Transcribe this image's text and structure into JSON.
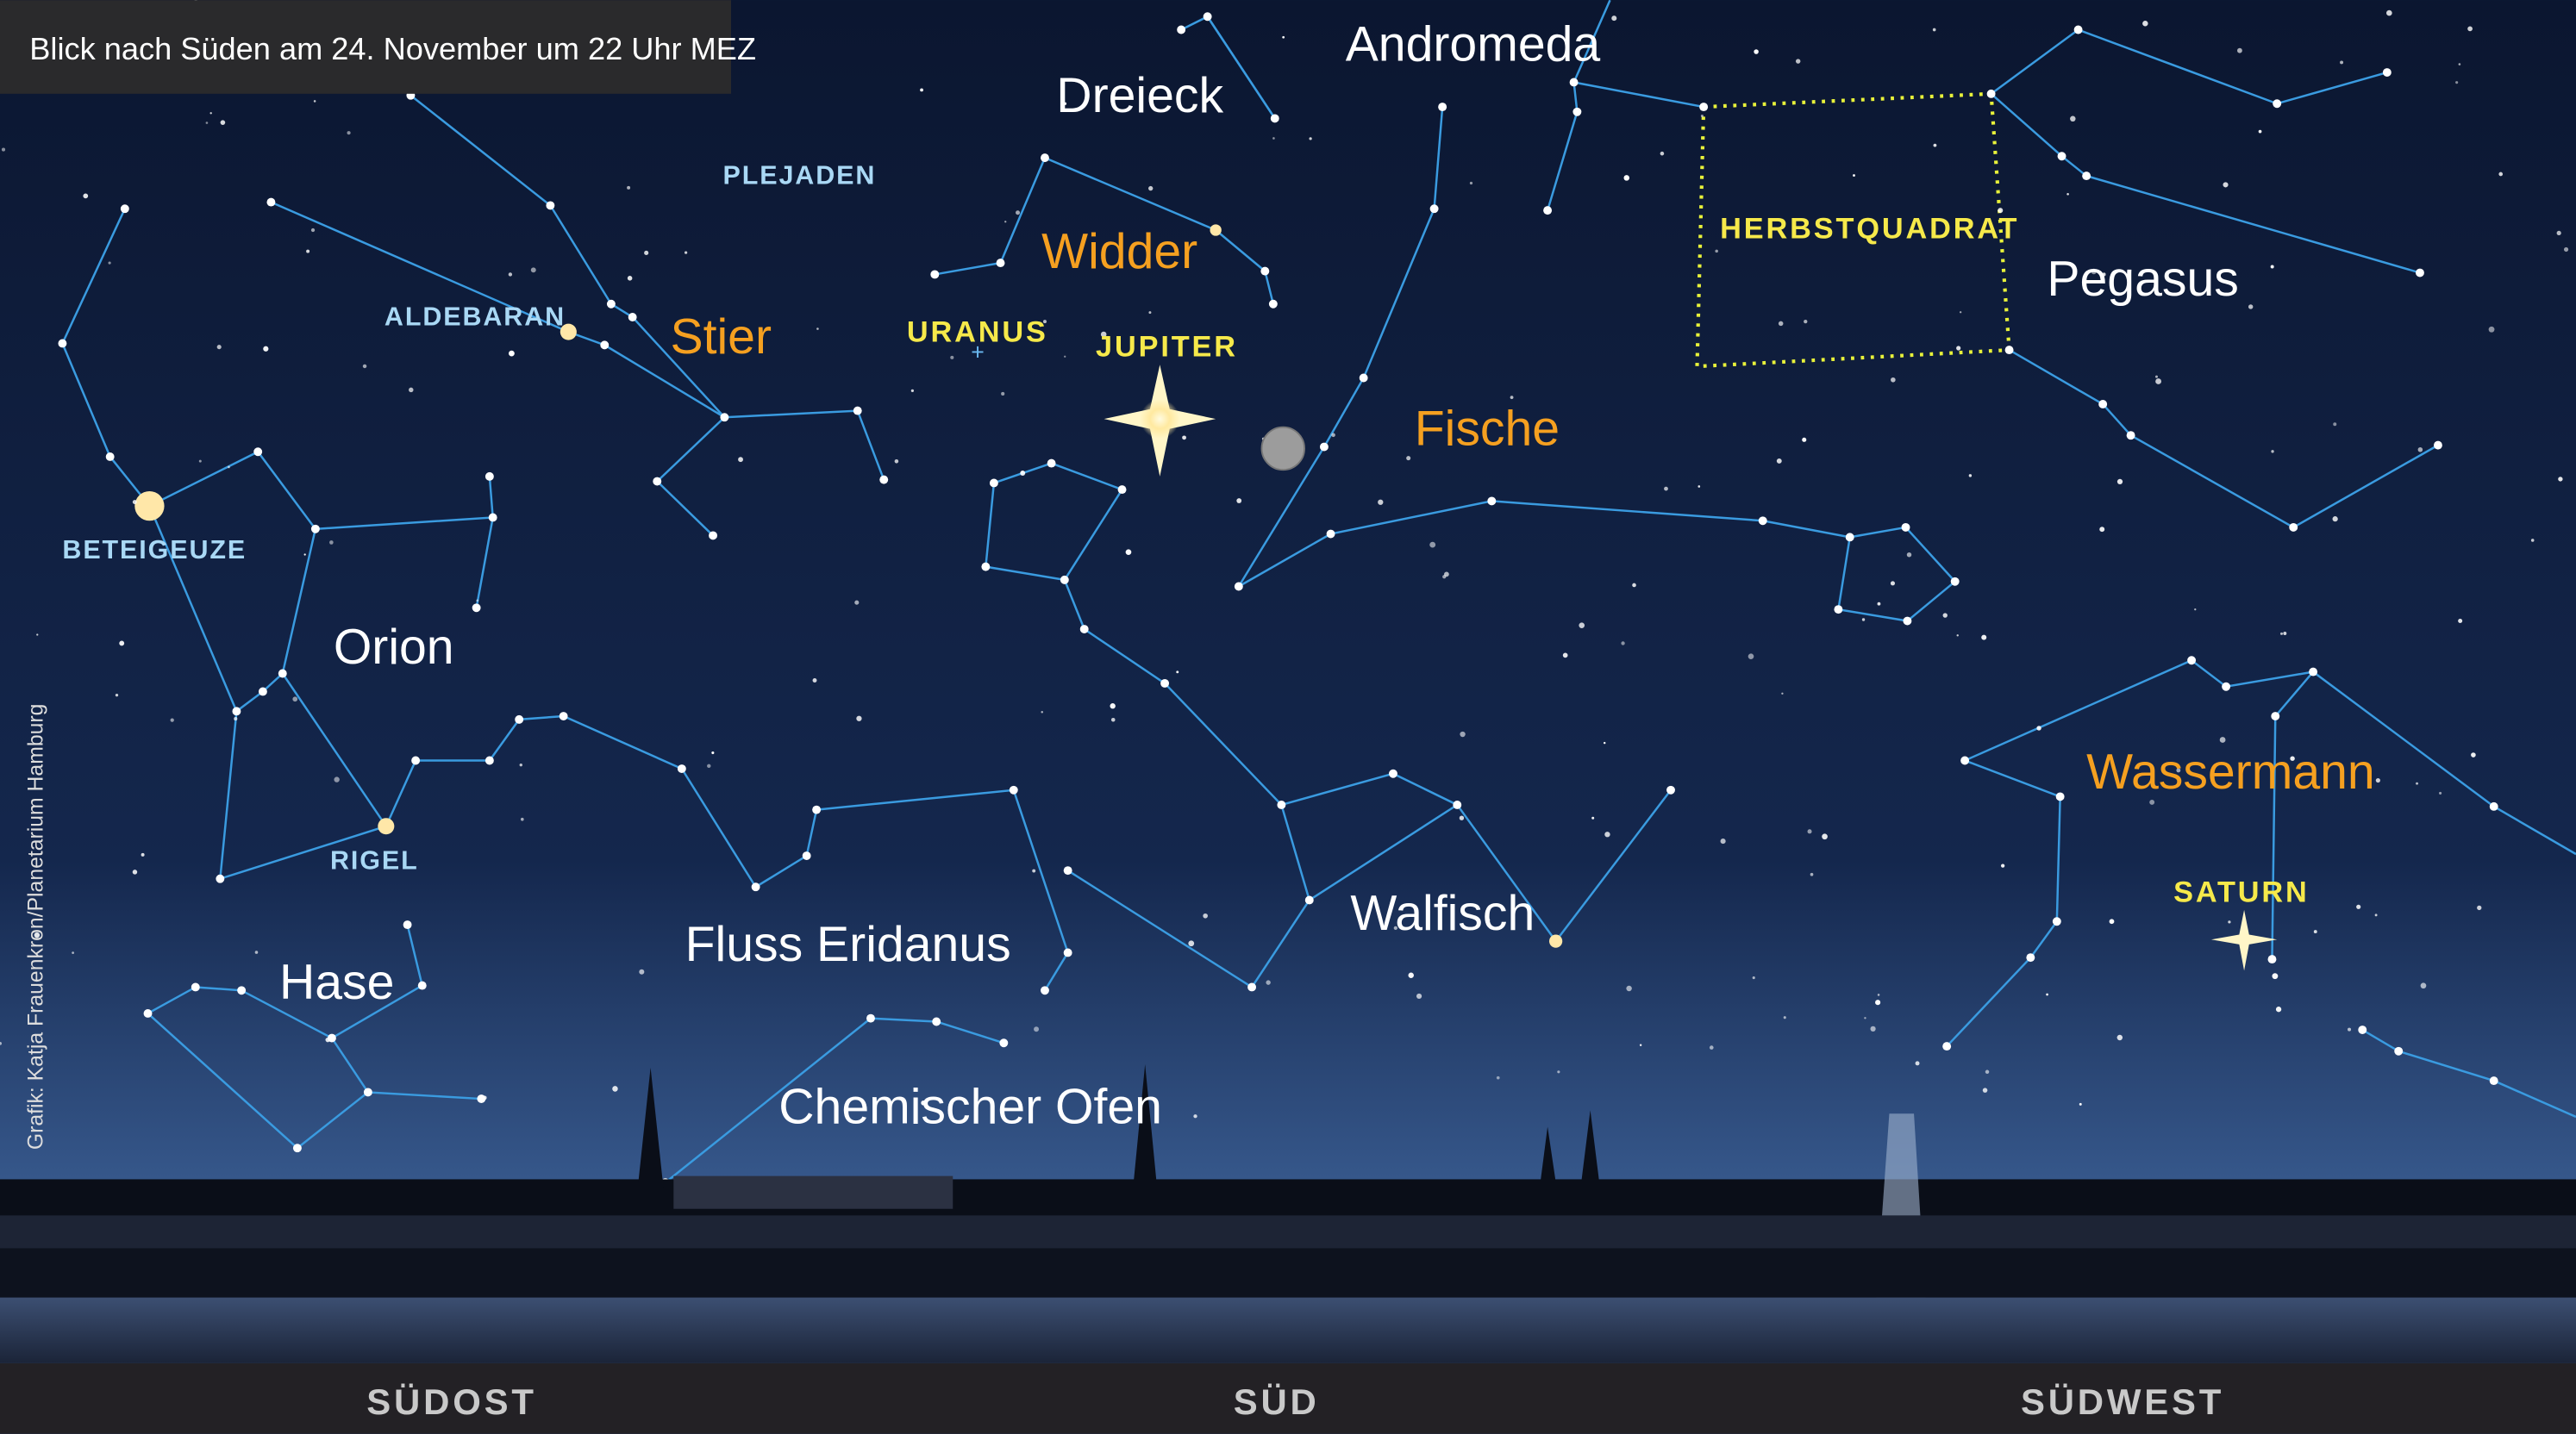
{
  "header": {
    "title": "Blick nach Süden am 24. November um 22 Uhr MEZ"
  },
  "credit": "Grafik: Katja Frauenkron/Planetarium Hamburg",
  "constellations": {
    "andromeda": "Andromeda",
    "dreieck": "Dreieck",
    "widder": "Widder",
    "stier": "Stier",
    "fische": "Fische",
    "pegasus": "Pegasus",
    "orion": "Orion",
    "wassermann": "Wassermann",
    "walfisch": "Walfisch",
    "eridanus": "Fluss Eridanus",
    "hase": "Hase",
    "ofen": "Chemischer Ofen"
  },
  "asterism": "HERBSTQUADRAT",
  "stars": {
    "plejaden": "PLEJADEN",
    "aldebaran": "ALDEBARAN",
    "beteigeuze": "BETEIGEUZE",
    "rigel": "RIGEL"
  },
  "planets": {
    "uranus": "URANUS",
    "jupiter": "JUPITER",
    "saturn": "SATURN"
  },
  "directions": [
    "SÜDOST",
    "SÜD",
    "SÜDWEST"
  ]
}
